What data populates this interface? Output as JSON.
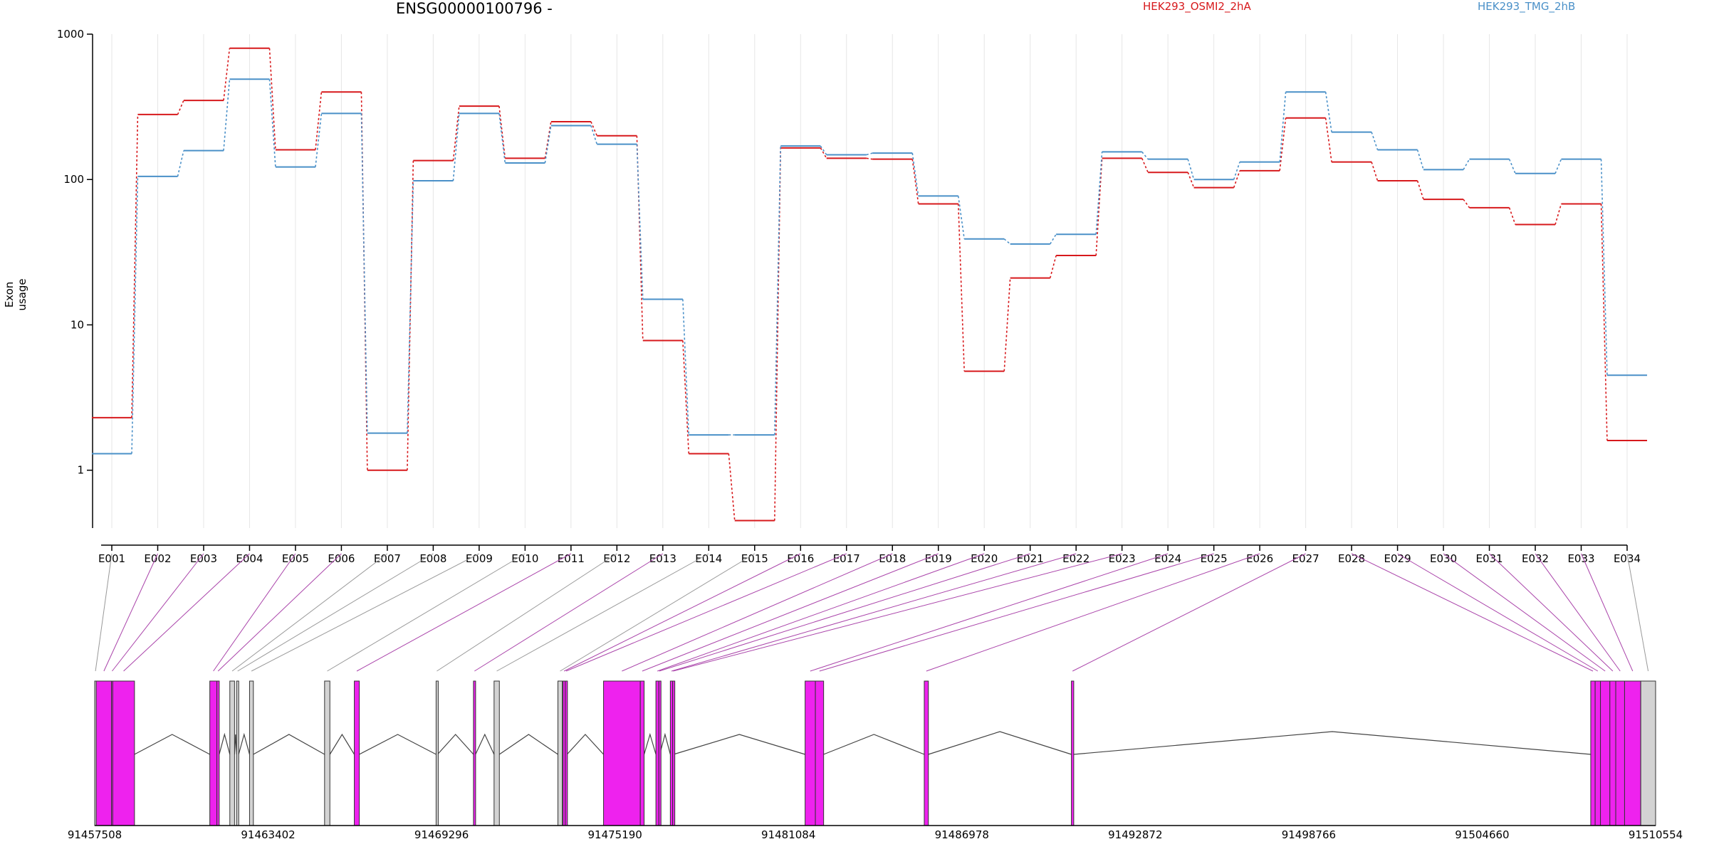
{
  "chart_data": {
    "type": "line",
    "title": "ENSG00000100796 -",
    "ylabel": "Exon usage",
    "xlabel": "",
    "yscale": "log",
    "ylim": [
      0.4,
      1000
    ],
    "yticks": [
      "1",
      "10",
      "100",
      "1000"
    ],
    "categories": [
      "E001",
      "E002",
      "E003",
      "E004",
      "E005",
      "E006",
      "E007",
      "E008",
      "E009",
      "E010",
      "E011",
      "E012",
      "E013",
      "E014",
      "E015",
      "E016",
      "E017",
      "E018",
      "E019",
      "E020",
      "E021",
      "E022",
      "E023",
      "E024",
      "E025",
      "E026",
      "E027",
      "E028",
      "E029",
      "E030",
      "E031",
      "E032",
      "E033",
      "E034"
    ],
    "series": [
      {
        "name": "HEK293_OSMI2_2hA",
        "color": "#d7191c",
        "values": [
          2.3,
          280,
          350,
          800,
          160,
          400,
          1.0,
          135,
          320,
          140,
          250,
          200,
          7.8,
          1.3,
          0.45,
          165,
          140,
          138,
          68,
          4.8,
          21,
          30,
          140,
          112,
          88,
          115,
          265,
          132,
          98,
          73,
          64,
          49,
          68,
          1.6
        ]
      },
      {
        "name": "HEK293_TMG_2hB",
        "color": "#4a90c8",
        "values": [
          1.3,
          105,
          158,
          490,
          122,
          285,
          1.8,
          98,
          285,
          130,
          235,
          175,
          15,
          1.75,
          1.75,
          170,
          148,
          152,
          77,
          39,
          36,
          42,
          155,
          138,
          100,
          132,
          400,
          212,
          160,
          117,
          138,
          110,
          138,
          4.5
        ]
      }
    ],
    "genomic_axis_labels": [
      "91457508",
      "91463402",
      "91469296",
      "91475190",
      "91481084",
      "91486978",
      "91492872",
      "91498766",
      "91504660",
      "91510554"
    ],
    "exon_tracks": {
      "exons": [
        {
          "id": "E001",
          "start": 91457508,
          "end": 91457560,
          "flag": "grey"
        },
        {
          "id": "E002",
          "start": 91457560,
          "end": 91458080,
          "flag": "magenta"
        },
        {
          "id": "E003",
          "start": 91458080,
          "end": 91458120,
          "flag": "magenta"
        },
        {
          "id": "E004",
          "start": 91458120,
          "end": 91458860,
          "flag": "magenta"
        },
        {
          "id": "E005",
          "start": 91461420,
          "end": 91461660,
          "flag": "magenta"
        },
        {
          "id": "E006",
          "start": 91461660,
          "end": 91461740,
          "flag": "magenta"
        },
        {
          "id": "E007",
          "start": 91462100,
          "end": 91462260,
          "flag": "grey"
        },
        {
          "id": "E008",
          "start": 91462330,
          "end": 91462400,
          "flag": "grey"
        },
        {
          "id": "E009",
          "start": 91462770,
          "end": 91462900,
          "flag": "grey"
        },
        {
          "id": "E010",
          "start": 91465320,
          "end": 91465500,
          "flag": "grey"
        },
        {
          "id": "E011",
          "start": 91466330,
          "end": 91466500,
          "flag": "magenta"
        },
        {
          "id": "E012",
          "start": 91469110,
          "end": 91469160,
          "flag": "grey"
        },
        {
          "id": "E013",
          "start": 91470380,
          "end": 91470450,
          "flag": "magenta"
        },
        {
          "id": "E014",
          "start": 91471080,
          "end": 91471260,
          "flag": "grey"
        },
        {
          "id": "E015",
          "start": 91473250,
          "end": 91473400,
          "flag": "grey"
        },
        {
          "id": "E016",
          "start": 91473420,
          "end": 91473500,
          "flag": "magenta"
        },
        {
          "id": "E017",
          "start": 91473500,
          "end": 91473560,
          "flag": "magenta"
        },
        {
          "id": "E018",
          "start": 91474800,
          "end": 91476050,
          "flag": "magenta"
        },
        {
          "id": "E019",
          "start": 91476050,
          "end": 91476180,
          "flag": "magenta"
        },
        {
          "id": "E020",
          "start": 91476580,
          "end": 91476680,
          "flag": "magenta"
        },
        {
          "id": "E021",
          "start": 91476680,
          "end": 91476710,
          "flag": "magenta"
        },
        {
          "id": "E022",
          "start": 91477070,
          "end": 91477150,
          "flag": "magenta"
        },
        {
          "id": "E023",
          "start": 91477150,
          "end": 91477180,
          "flag": "magenta"
        },
        {
          "id": "E024",
          "start": 91481650,
          "end": 91482000,
          "flag": "magenta"
        },
        {
          "id": "E025",
          "start": 91482000,
          "end": 91482280,
          "flag": "magenta"
        },
        {
          "id": "E026",
          "start": 91485700,
          "end": 91485840,
          "flag": "magenta"
        },
        {
          "id": "E027",
          "start": 91490700,
          "end": 91490780,
          "flag": "magenta"
        },
        {
          "id": "E028",
          "start": 91508350,
          "end": 91508500,
          "flag": "magenta"
        },
        {
          "id": "E029",
          "start": 91508500,
          "end": 91508680,
          "flag": "magenta"
        },
        {
          "id": "E030",
          "start": 91508680,
          "end": 91509000,
          "flag": "magenta"
        },
        {
          "id": "E031",
          "start": 91509000,
          "end": 91509200,
          "flag": "magenta"
        },
        {
          "id": "E032",
          "start": 91509200,
          "end": 91509500,
          "flag": "magenta"
        },
        {
          "id": "E033",
          "start": 91509500,
          "end": 91510050,
          "flag": "magenta"
        },
        {
          "id": "E034",
          "start": 91510050,
          "end": 91510554,
          "flag": "grey"
        }
      ],
      "introns": [
        [
          91458860,
          91461420
        ],
        [
          91461740,
          91462100
        ],
        [
          91462260,
          91462330
        ],
        [
          91462400,
          91462770
        ],
        [
          91462900,
          91465320
        ],
        [
          91465500,
          91466330
        ],
        [
          91466500,
          91469110
        ],
        [
          91469160,
          91470380
        ],
        [
          91470450,
          91471080
        ],
        [
          91471260,
          91473250
        ],
        [
          91473560,
          91474800
        ],
        [
          91476180,
          91476580
        ],
        [
          91476710,
          91477070
        ],
        [
          91477180,
          91481650
        ],
        [
          91482280,
          91485700
        ],
        [
          91485840,
          91490700
        ],
        [
          91490780,
          91508350
        ]
      ]
    },
    "grid": true,
    "legend_position": "top"
  },
  "colors": {
    "series_a": "#d7191c",
    "series_b": "#4a90c8",
    "exon_highlight": "#ee22ee",
    "exon_plain": "#d3d3d3",
    "connector_highlight": "#aa44aa",
    "connector_plain": "#999999",
    "grid": "#e6e6e6"
  }
}
